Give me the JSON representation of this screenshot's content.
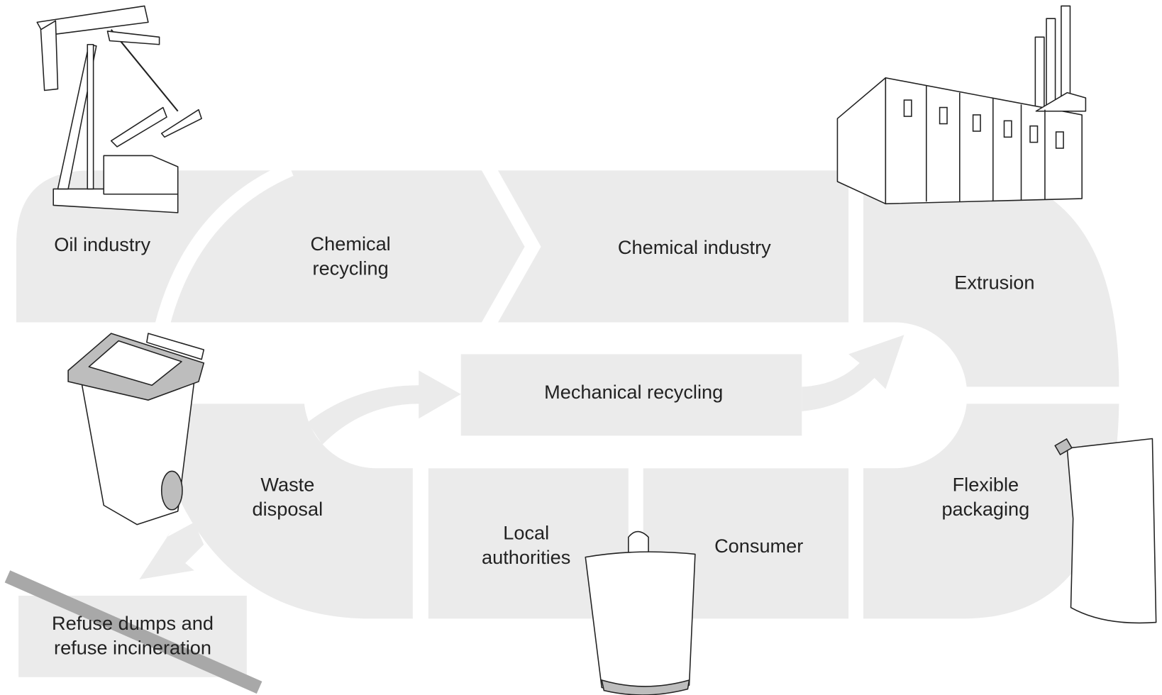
{
  "nodes": [
    {
      "lines": [
        "Oil industry"
      ]
    },
    {
      "lines": [
        "Chemical",
        "recycling"
      ]
    },
    {
      "lines": [
        "Chemical industry"
      ]
    },
    {
      "lines": [
        "Extrusion"
      ]
    },
    {
      "lines": [
        "Mechanical recycling"
      ]
    },
    {
      "lines": [
        "Waste",
        "disposal"
      ]
    },
    {
      "lines": [
        "Local",
        "authorities"
      ]
    },
    {
      "lines": [
        "Consumer"
      ]
    },
    {
      "lines": [
        "Flexible",
        "packaging"
      ]
    },
    {
      "lines": [
        "Refuse dumps and",
        "refuse incineration"
      ]
    }
  ]
}
